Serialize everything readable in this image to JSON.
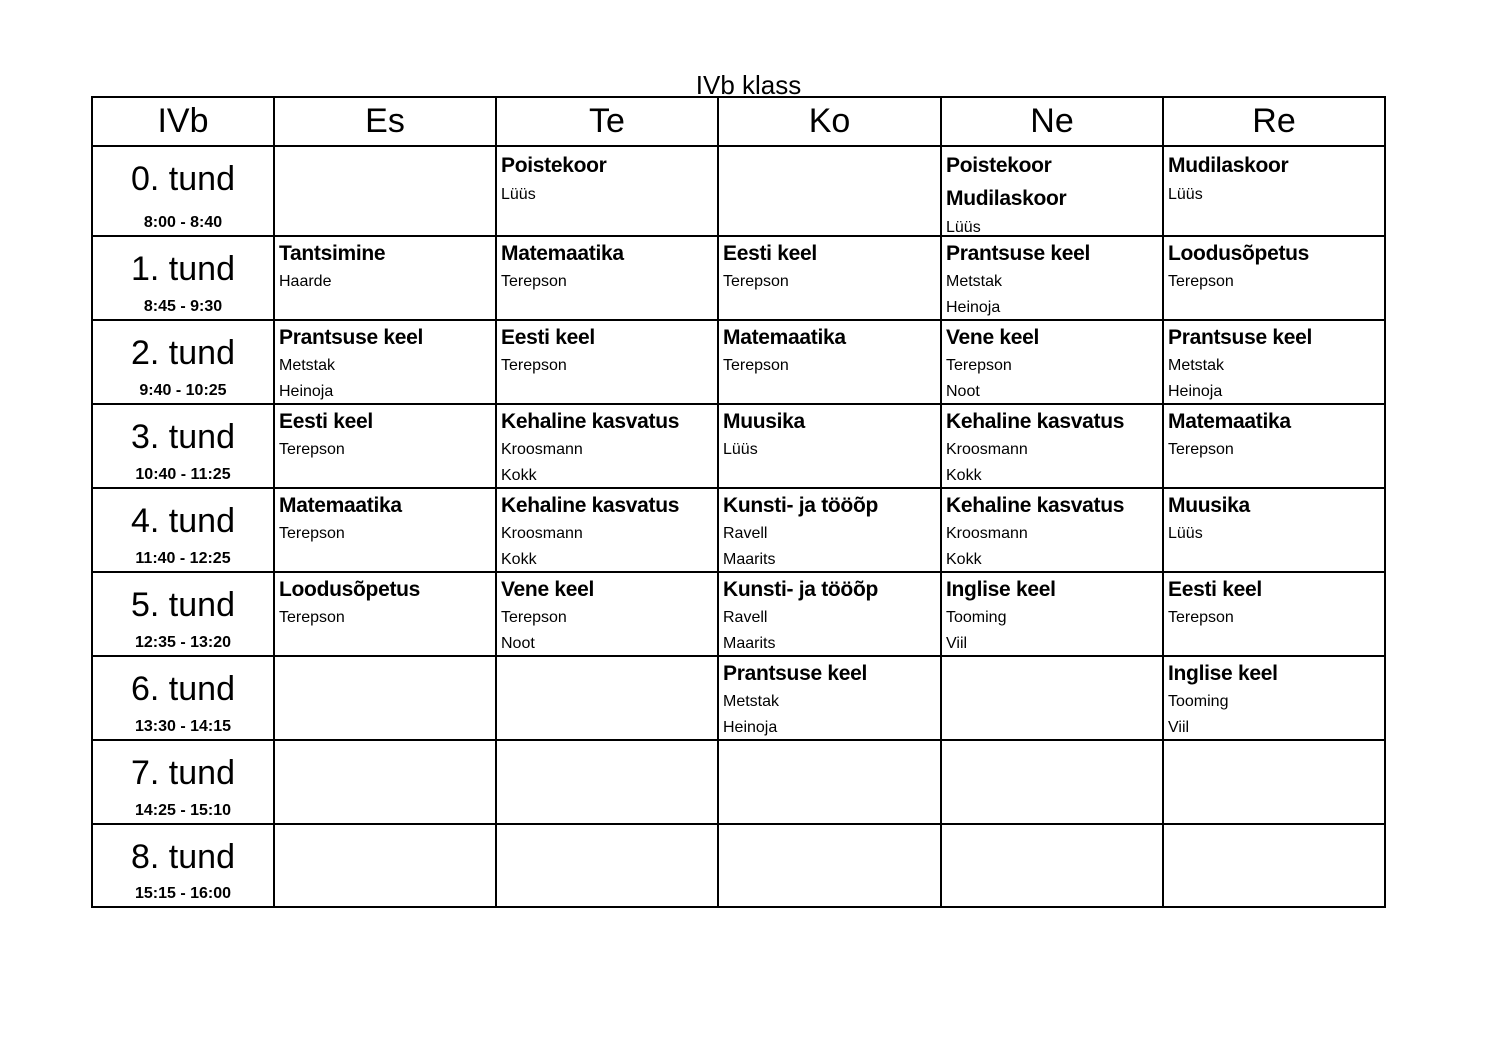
{
  "title": "IVb klass",
  "header": [
    "IVb",
    "Es",
    "Te",
    "Ko",
    "Ne",
    "Re"
  ],
  "rows": [
    {
      "label": "0. tund",
      "time": "8:00 - 8:40",
      "cells": [
        {
          "subjects": [],
          "teachers": []
        },
        {
          "subjects": [
            "Poistekoor"
          ],
          "teachers": [
            "Lüüs"
          ]
        },
        {
          "subjects": [],
          "teachers": []
        },
        {
          "subjects": [
            "Poistekoor",
            "Mudilaskoor"
          ],
          "teachers": [
            "Lüüs"
          ]
        },
        {
          "subjects": [
            "Mudilaskoor"
          ],
          "teachers": [
            "Lüüs"
          ]
        }
      ]
    },
    {
      "label": "1. tund",
      "time": "8:45 - 9:30",
      "cells": [
        {
          "subjects": [
            "Tantsimine"
          ],
          "teachers": [
            "Haarde"
          ]
        },
        {
          "subjects": [
            "Matemaatika"
          ],
          "teachers": [
            "Terepson"
          ]
        },
        {
          "subjects": [
            "Eesti keel"
          ],
          "teachers": [
            "Terepson"
          ]
        },
        {
          "subjects": [
            "Prantsuse keel"
          ],
          "teachers": [
            "Metstak",
            "Heinoja"
          ]
        },
        {
          "subjects": [
            "Loodusõpetus"
          ],
          "teachers": [
            "Terepson"
          ]
        }
      ]
    },
    {
      "label": "2. tund",
      "time": "9:40 - 10:25",
      "cells": [
        {
          "subjects": [
            "Prantsuse keel"
          ],
          "teachers": [
            "Metstak",
            "Heinoja"
          ]
        },
        {
          "subjects": [
            "Eesti keel"
          ],
          "teachers": [
            "Terepson"
          ]
        },
        {
          "subjects": [
            "Matemaatika"
          ],
          "teachers": [
            "Terepson"
          ]
        },
        {
          "subjects": [
            "Vene keel"
          ],
          "teachers": [
            "Terepson",
            "Noot"
          ]
        },
        {
          "subjects": [
            "Prantsuse keel"
          ],
          "teachers": [
            "Metstak",
            "Heinoja"
          ]
        }
      ]
    },
    {
      "label": "3. tund",
      "time": "10:40 - 11:25",
      "cells": [
        {
          "subjects": [
            "Eesti keel"
          ],
          "teachers": [
            "Terepson"
          ]
        },
        {
          "subjects": [
            "Kehaline kasvatus"
          ],
          "teachers": [
            "Kroosmann",
            "Kokk"
          ]
        },
        {
          "subjects": [
            "Muusika"
          ],
          "teachers": [
            "Lüüs"
          ]
        },
        {
          "subjects": [
            "Kehaline kasvatus"
          ],
          "teachers": [
            "Kroosmann",
            "Kokk"
          ]
        },
        {
          "subjects": [
            "Matemaatika"
          ],
          "teachers": [
            "Terepson"
          ]
        }
      ]
    },
    {
      "label": "4. tund",
      "time": "11:40 - 12:25",
      "cells": [
        {
          "subjects": [
            "Matemaatika"
          ],
          "teachers": [
            "Terepson"
          ]
        },
        {
          "subjects": [
            "Kehaline kasvatus"
          ],
          "teachers": [
            "Kroosmann",
            "Kokk"
          ]
        },
        {
          "subjects": [
            "Kunsti- ja tööõp"
          ],
          "teachers": [
            "Ravell",
            "Maarits"
          ]
        },
        {
          "subjects": [
            "Kehaline kasvatus"
          ],
          "teachers": [
            "Kroosmann",
            "Kokk"
          ]
        },
        {
          "subjects": [
            "Muusika"
          ],
          "teachers": [
            "Lüüs"
          ]
        }
      ]
    },
    {
      "label": "5. tund",
      "time": "12:35 - 13:20",
      "cells": [
        {
          "subjects": [
            "Loodusõpetus"
          ],
          "teachers": [
            "Terepson"
          ]
        },
        {
          "subjects": [
            "Vene keel"
          ],
          "teachers": [
            "Terepson",
            "Noot"
          ]
        },
        {
          "subjects": [
            "Kunsti- ja tööõp"
          ],
          "teachers": [
            "Ravell",
            "Maarits"
          ]
        },
        {
          "subjects": [
            "Inglise keel"
          ],
          "teachers": [
            "Tooming",
            "Viil"
          ]
        },
        {
          "subjects": [
            "Eesti keel"
          ],
          "teachers": [
            "Terepson"
          ]
        }
      ]
    },
    {
      "label": "6. tund",
      "time": "13:30 - 14:15",
      "cells": [
        {
          "subjects": [],
          "teachers": []
        },
        {
          "subjects": [],
          "teachers": []
        },
        {
          "subjects": [
            "Prantsuse keel"
          ],
          "teachers": [
            "Metstak",
            "Heinoja"
          ]
        },
        {
          "subjects": [],
          "teachers": []
        },
        {
          "subjects": [
            "Inglise keel"
          ],
          "teachers": [
            "Tooming",
            "Viil"
          ]
        }
      ]
    },
    {
      "label": "7. tund",
      "time": "14:25 - 15:10",
      "cells": [
        {
          "subjects": [],
          "teachers": []
        },
        {
          "subjects": [],
          "teachers": []
        },
        {
          "subjects": [],
          "teachers": []
        },
        {
          "subjects": [],
          "teachers": []
        },
        {
          "subjects": [],
          "teachers": []
        }
      ]
    },
    {
      "label": "8. tund",
      "time": "15:15 - 16:00",
      "cells": [
        {
          "subjects": [],
          "teachers": []
        },
        {
          "subjects": [],
          "teachers": []
        },
        {
          "subjects": [],
          "teachers": []
        },
        {
          "subjects": [],
          "teachers": []
        },
        {
          "subjects": [],
          "teachers": []
        }
      ]
    }
  ]
}
